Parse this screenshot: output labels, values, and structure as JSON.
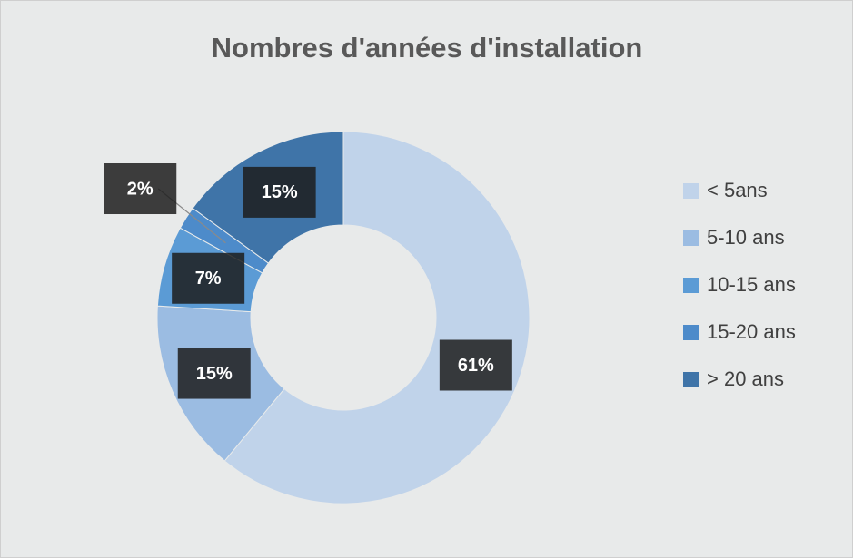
{
  "chart_data": {
    "type": "donut",
    "title": "Nombres d'années d'installation",
    "categories": [
      "< 5ans",
      "5-10 ans",
      "10-15 ans",
      "15-20 ans",
      "> 20 ans"
    ],
    "values": [
      61,
      15,
      7,
      2,
      15
    ],
    "value_labels": [
      "61%",
      "15%",
      "7%",
      "2%",
      "15%"
    ],
    "colors": [
      "#c0d3ea",
      "#9bbce2",
      "#5b9bd5",
      "#4d8bca",
      "#3f74a8"
    ],
    "legend": "right"
  }
}
